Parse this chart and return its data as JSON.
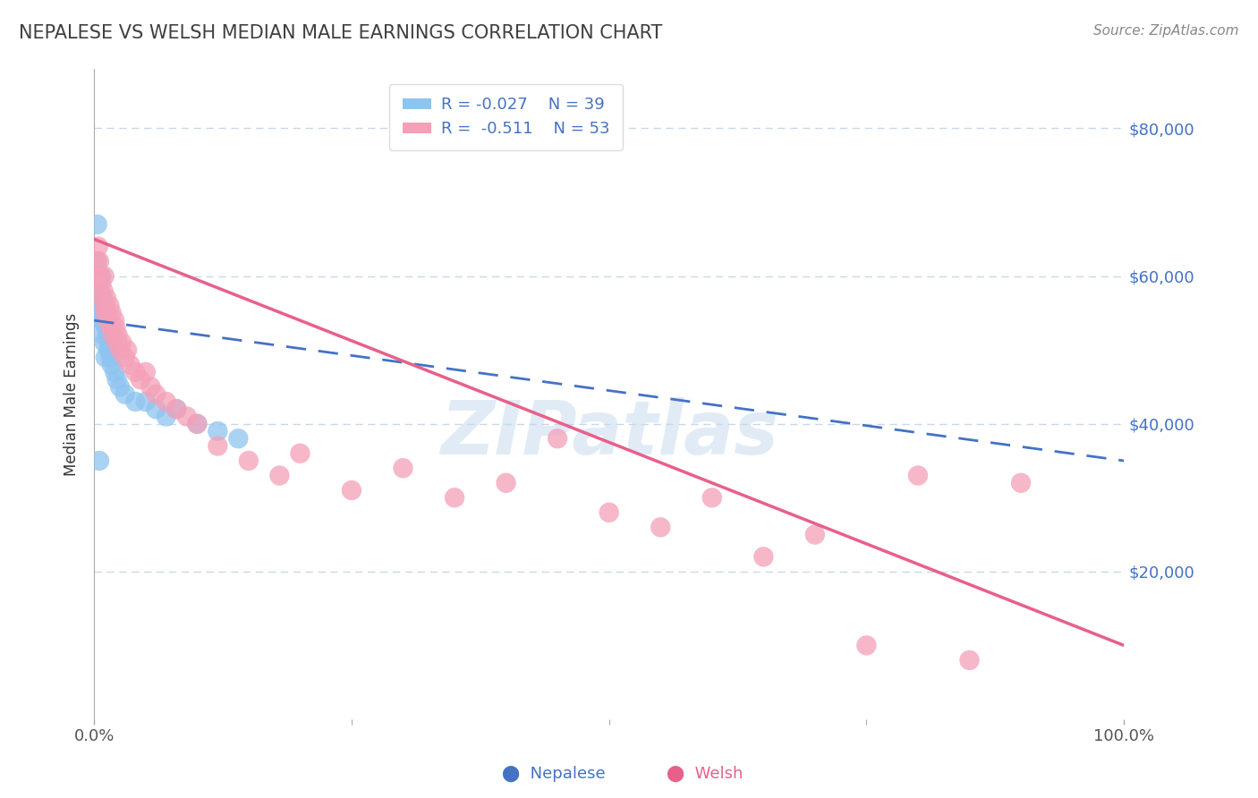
{
  "title": "NEPALESE VS WELSH MEDIAN MALE EARNINGS CORRELATION CHART",
  "source": "Source: ZipAtlas.com",
  "ylabel": "Median Male Earnings",
  "watermark": "ZIPatlas",
  "y_tick_labels": [
    "$20,000",
    "$40,000",
    "$60,000",
    "$80,000"
  ],
  "y_tick_values": [
    20000,
    40000,
    60000,
    80000
  ],
  "xlim": [
    0.0,
    100.0
  ],
  "ylim": [
    0,
    88000
  ],
  "nepalese_color": "#8ec4f0",
  "welsh_color": "#f4a0b8",
  "nepalese_line_color": "#4472c4",
  "welsh_line_color": "#e8608a",
  "legend_nepalese": "R = -0.027    N = 39",
  "legend_welsh": "R =  -0.511    N = 53",
  "title_color": "#404040",
  "ytick_color": "#4472c4",
  "source_color": "#888888",
  "background_color": "#ffffff",
  "grid_color": "#c8d8e8",
  "nep_line_x0": 0,
  "nep_line_y0": 54000,
  "nep_line_x1": 100,
  "nep_line_y1": 35000,
  "wel_line_x0": 0,
  "wel_line_y0": 65000,
  "wel_line_x1": 100,
  "wel_line_y1": 10000,
  "nepalese_x": [
    0.2,
    0.3,
    0.3,
    0.4,
    0.4,
    0.5,
    0.5,
    0.6,
    0.6,
    0.7,
    0.7,
    0.8,
    0.8,
    0.9,
    0.9,
    1.0,
    1.0,
    1.1,
    1.1,
    1.2,
    1.3,
    1.4,
    1.5,
    1.6,
    1.7,
    2.0,
    2.2,
    2.5,
    3.0,
    4.0,
    5.0,
    6.0,
    7.0,
    8.0,
    10.0,
    12.0,
    14.0,
    0.3,
    0.5
  ],
  "nepalese_y": [
    60000,
    62000,
    58000,
    60000,
    56000,
    58000,
    55000,
    57000,
    54000,
    60000,
    55000,
    57000,
    54000,
    55000,
    52000,
    56000,
    51000,
    54000,
    49000,
    53000,
    52000,
    50000,
    51000,
    49000,
    48000,
    47000,
    46000,
    45000,
    44000,
    43000,
    43000,
    42000,
    41000,
    42000,
    40000,
    39000,
    38000,
    67000,
    35000
  ],
  "welsh_x": [
    0.2,
    0.3,
    0.4,
    0.5,
    0.6,
    0.7,
    0.8,
    0.9,
    1.0,
    1.0,
    1.1,
    1.2,
    1.3,
    1.5,
    1.6,
    1.7,
    1.8,
    2.0,
    2.1,
    2.2,
    2.3,
    2.5,
    2.7,
    3.0,
    3.2,
    3.5,
    4.0,
    4.5,
    5.0,
    5.5,
    6.0,
    7.0,
    8.0,
    9.0,
    10.0,
    12.0,
    15.0,
    18.0,
    20.0,
    25.0,
    30.0,
    35.0,
    40.0,
    45.0,
    50.0,
    55.0,
    60.0,
    65.0,
    70.0,
    75.0,
    80.0,
    85.0,
    90.0
  ],
  "welsh_y": [
    62000,
    60000,
    64000,
    62000,
    60000,
    59000,
    57000,
    58000,
    56000,
    60000,
    55000,
    57000,
    54000,
    56000,
    53000,
    55000,
    52000,
    54000,
    53000,
    51000,
    52000,
    50000,
    51000,
    49000,
    50000,
    48000,
    47000,
    46000,
    47000,
    45000,
    44000,
    43000,
    42000,
    41000,
    40000,
    37000,
    35000,
    33000,
    36000,
    31000,
    34000,
    30000,
    32000,
    38000,
    28000,
    26000,
    30000,
    22000,
    25000,
    10000,
    33000,
    8000,
    32000
  ]
}
